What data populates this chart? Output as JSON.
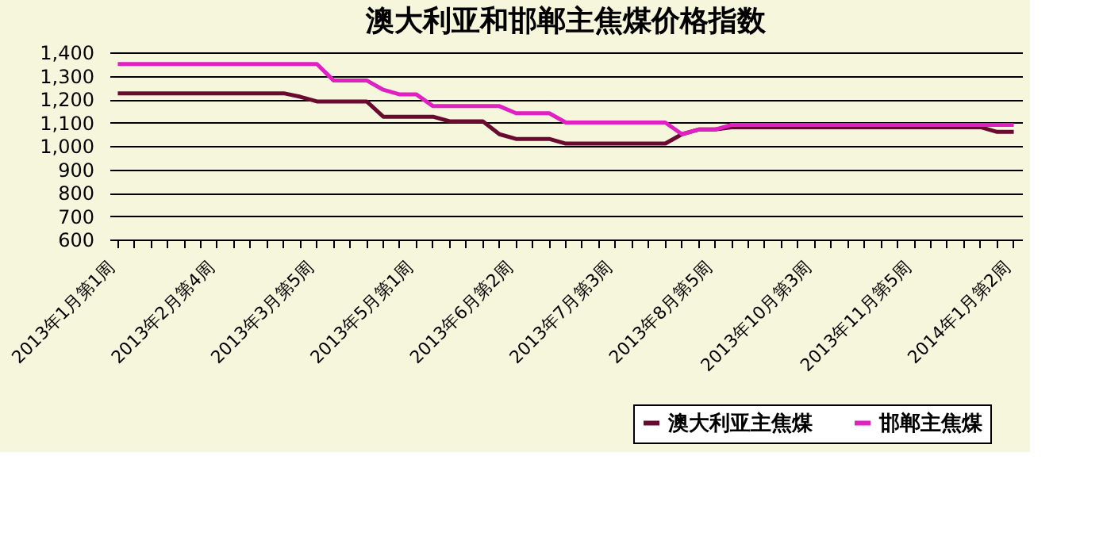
{
  "chart_data": {
    "type": "line",
    "title": "澳大利亚和邯郸主焦煤价格指数",
    "categories": [
      "2013年1月第1周",
      null,
      null,
      null,
      null,
      null,
      "2013年2月第4周",
      null,
      null,
      null,
      null,
      null,
      "2013年3月第5周",
      null,
      null,
      null,
      null,
      null,
      "2013年5月第1周",
      null,
      null,
      null,
      null,
      null,
      "2013年6月第2周",
      null,
      null,
      null,
      null,
      null,
      "2013年7月第3周",
      null,
      null,
      null,
      null,
      null,
      "2013年8月第5周",
      null,
      null,
      null,
      null,
      null,
      "2013年10月第3周",
      null,
      null,
      null,
      null,
      null,
      "2013年11月第5周",
      null,
      null,
      null,
      null,
      null,
      "2014年1月第2周"
    ],
    "series": [
      {
        "name": "澳大利亚主焦煤",
        "color": "#6b0a30",
        "values": [
          1225,
          1225,
          1225,
          1225,
          1225,
          1225,
          1225,
          1225,
          1225,
          1225,
          1225,
          1210,
          1190,
          1190,
          1190,
          1190,
          1125,
          1125,
          1125,
          1125,
          1105,
          1105,
          1105,
          1050,
          1030,
          1030,
          1030,
          1010,
          1010,
          1010,
          1010,
          1010,
          1010,
          1010,
          1050,
          1070,
          1070,
          1080,
          1080,
          1080,
          1080,
          1080,
          1080,
          1080,
          1080,
          1080,
          1080,
          1080,
          1080,
          1080,
          1080,
          1080,
          1080,
          1060,
          1060
        ]
      },
      {
        "name": "邯郸主焦煤",
        "color": "#e020c0",
        "values": [
          1350,
          1350,
          1350,
          1350,
          1350,
          1350,
          1350,
          1350,
          1350,
          1350,
          1350,
          1350,
          1350,
          1280,
          1280,
          1280,
          1240,
          1220,
          1220,
          1170,
          1170,
          1170,
          1170,
          1170,
          1140,
          1140,
          1140,
          1100,
          1100,
          1100,
          1100,
          1100,
          1100,
          1100,
          1050,
          1070,
          1070,
          1090,
          1090,
          1090,
          1090,
          1090,
          1090,
          1090,
          1090,
          1090,
          1090,
          1090,
          1090,
          1090,
          1090,
          1090,
          1090,
          1090,
          1090
        ]
      }
    ],
    "ylim": [
      600,
      1400
    ],
    "yticks": [
      600,
      700,
      800,
      900,
      {
        "value": 1000,
        "label": "1,000"
      },
      {
        "value": 1100,
        "label": "1,100"
      },
      {
        "value": 1200,
        "label": "1,200"
      },
      {
        "value": 1300,
        "label": "1,300"
      },
      {
        "value": 1400,
        "label": "1,400"
      }
    ],
    "grid": "y",
    "legend": "bottom right",
    "marker": "none",
    "line_style": "solid"
  }
}
